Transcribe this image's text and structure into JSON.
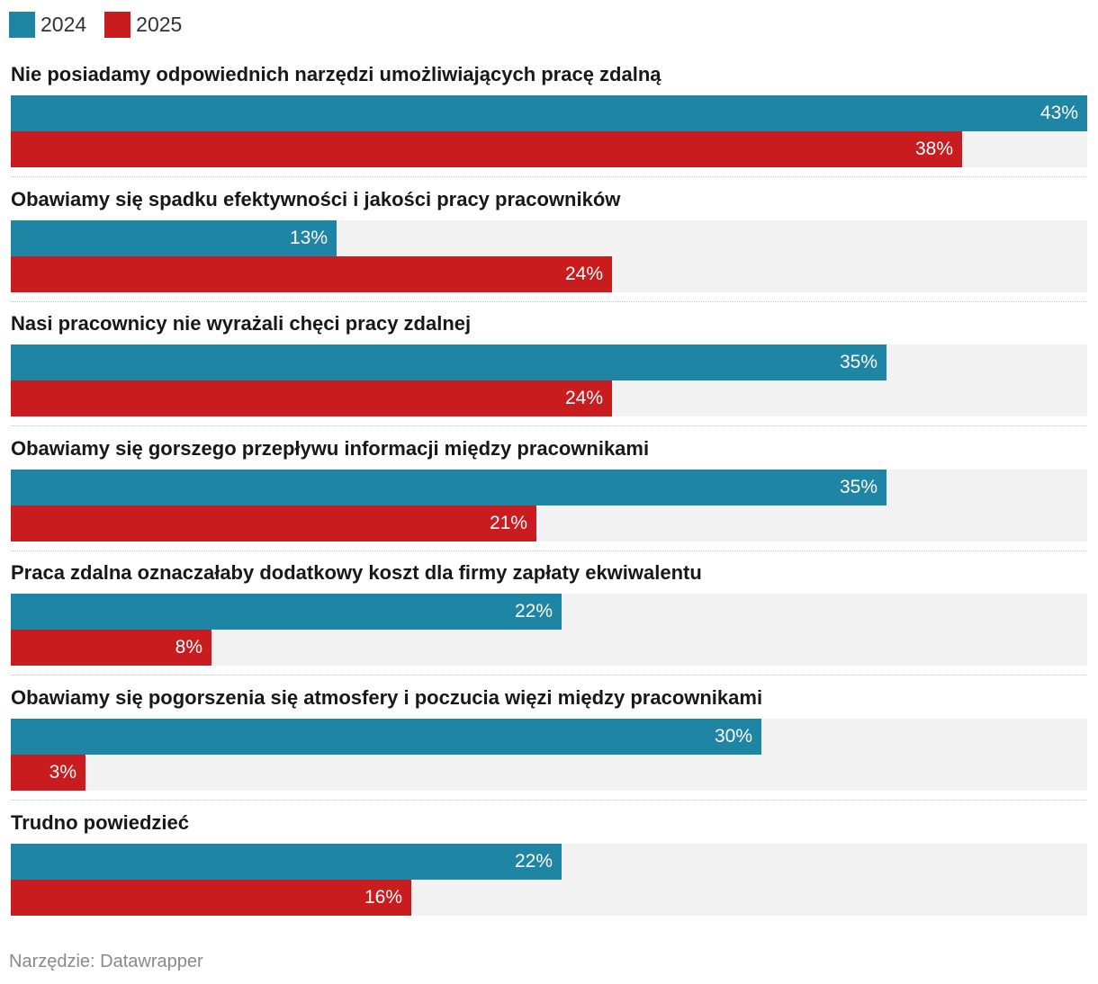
{
  "colors": {
    "s2024": "#1f85a5",
    "s2025": "#c81c1f",
    "track": "#f2f2f2"
  },
  "legend": [
    {
      "label": "2024",
      "color": "#1f85a5"
    },
    {
      "label": "2025",
      "color": "#c81c1f"
    }
  ],
  "chart_data": {
    "type": "bar",
    "orientation": "horizontal",
    "xlim": [
      0,
      43
    ],
    "grid": false,
    "legend_position": "top-left",
    "categories": [
      "Nie posiadamy odpowiednich narzędzi umożliwiających pracę zdalną",
      "Obawiamy się spadku efektywności i jakości pracy pracowników",
      "Nasi pracownicy nie wyrażali chęci pracy zdalnej",
      "Obawiamy się gorszego przepływu informacji między pracownikami",
      "Praca zdalna oznaczałaby dodatkowy koszt dla firmy zapłaty ekwiwalentu",
      "Obawiamy się pogorszenia się atmosfery i poczucia więzi między pracownikami",
      "Trudno powiedzieć"
    ],
    "series": [
      {
        "name": "2024",
        "values": [
          43,
          13,
          35,
          35,
          22,
          30,
          22
        ],
        "labels": [
          "43%",
          "13%",
          "35%",
          "35%",
          "22%",
          "30%",
          "22%"
        ]
      },
      {
        "name": "2025",
        "values": [
          38,
          24,
          24,
          21,
          8,
          3,
          16
        ],
        "labels": [
          "38%",
          "24%",
          "24%",
          "21%",
          "8%",
          "3%",
          "16%"
        ]
      }
    ]
  },
  "source": "Narzędzie: Datawrapper"
}
